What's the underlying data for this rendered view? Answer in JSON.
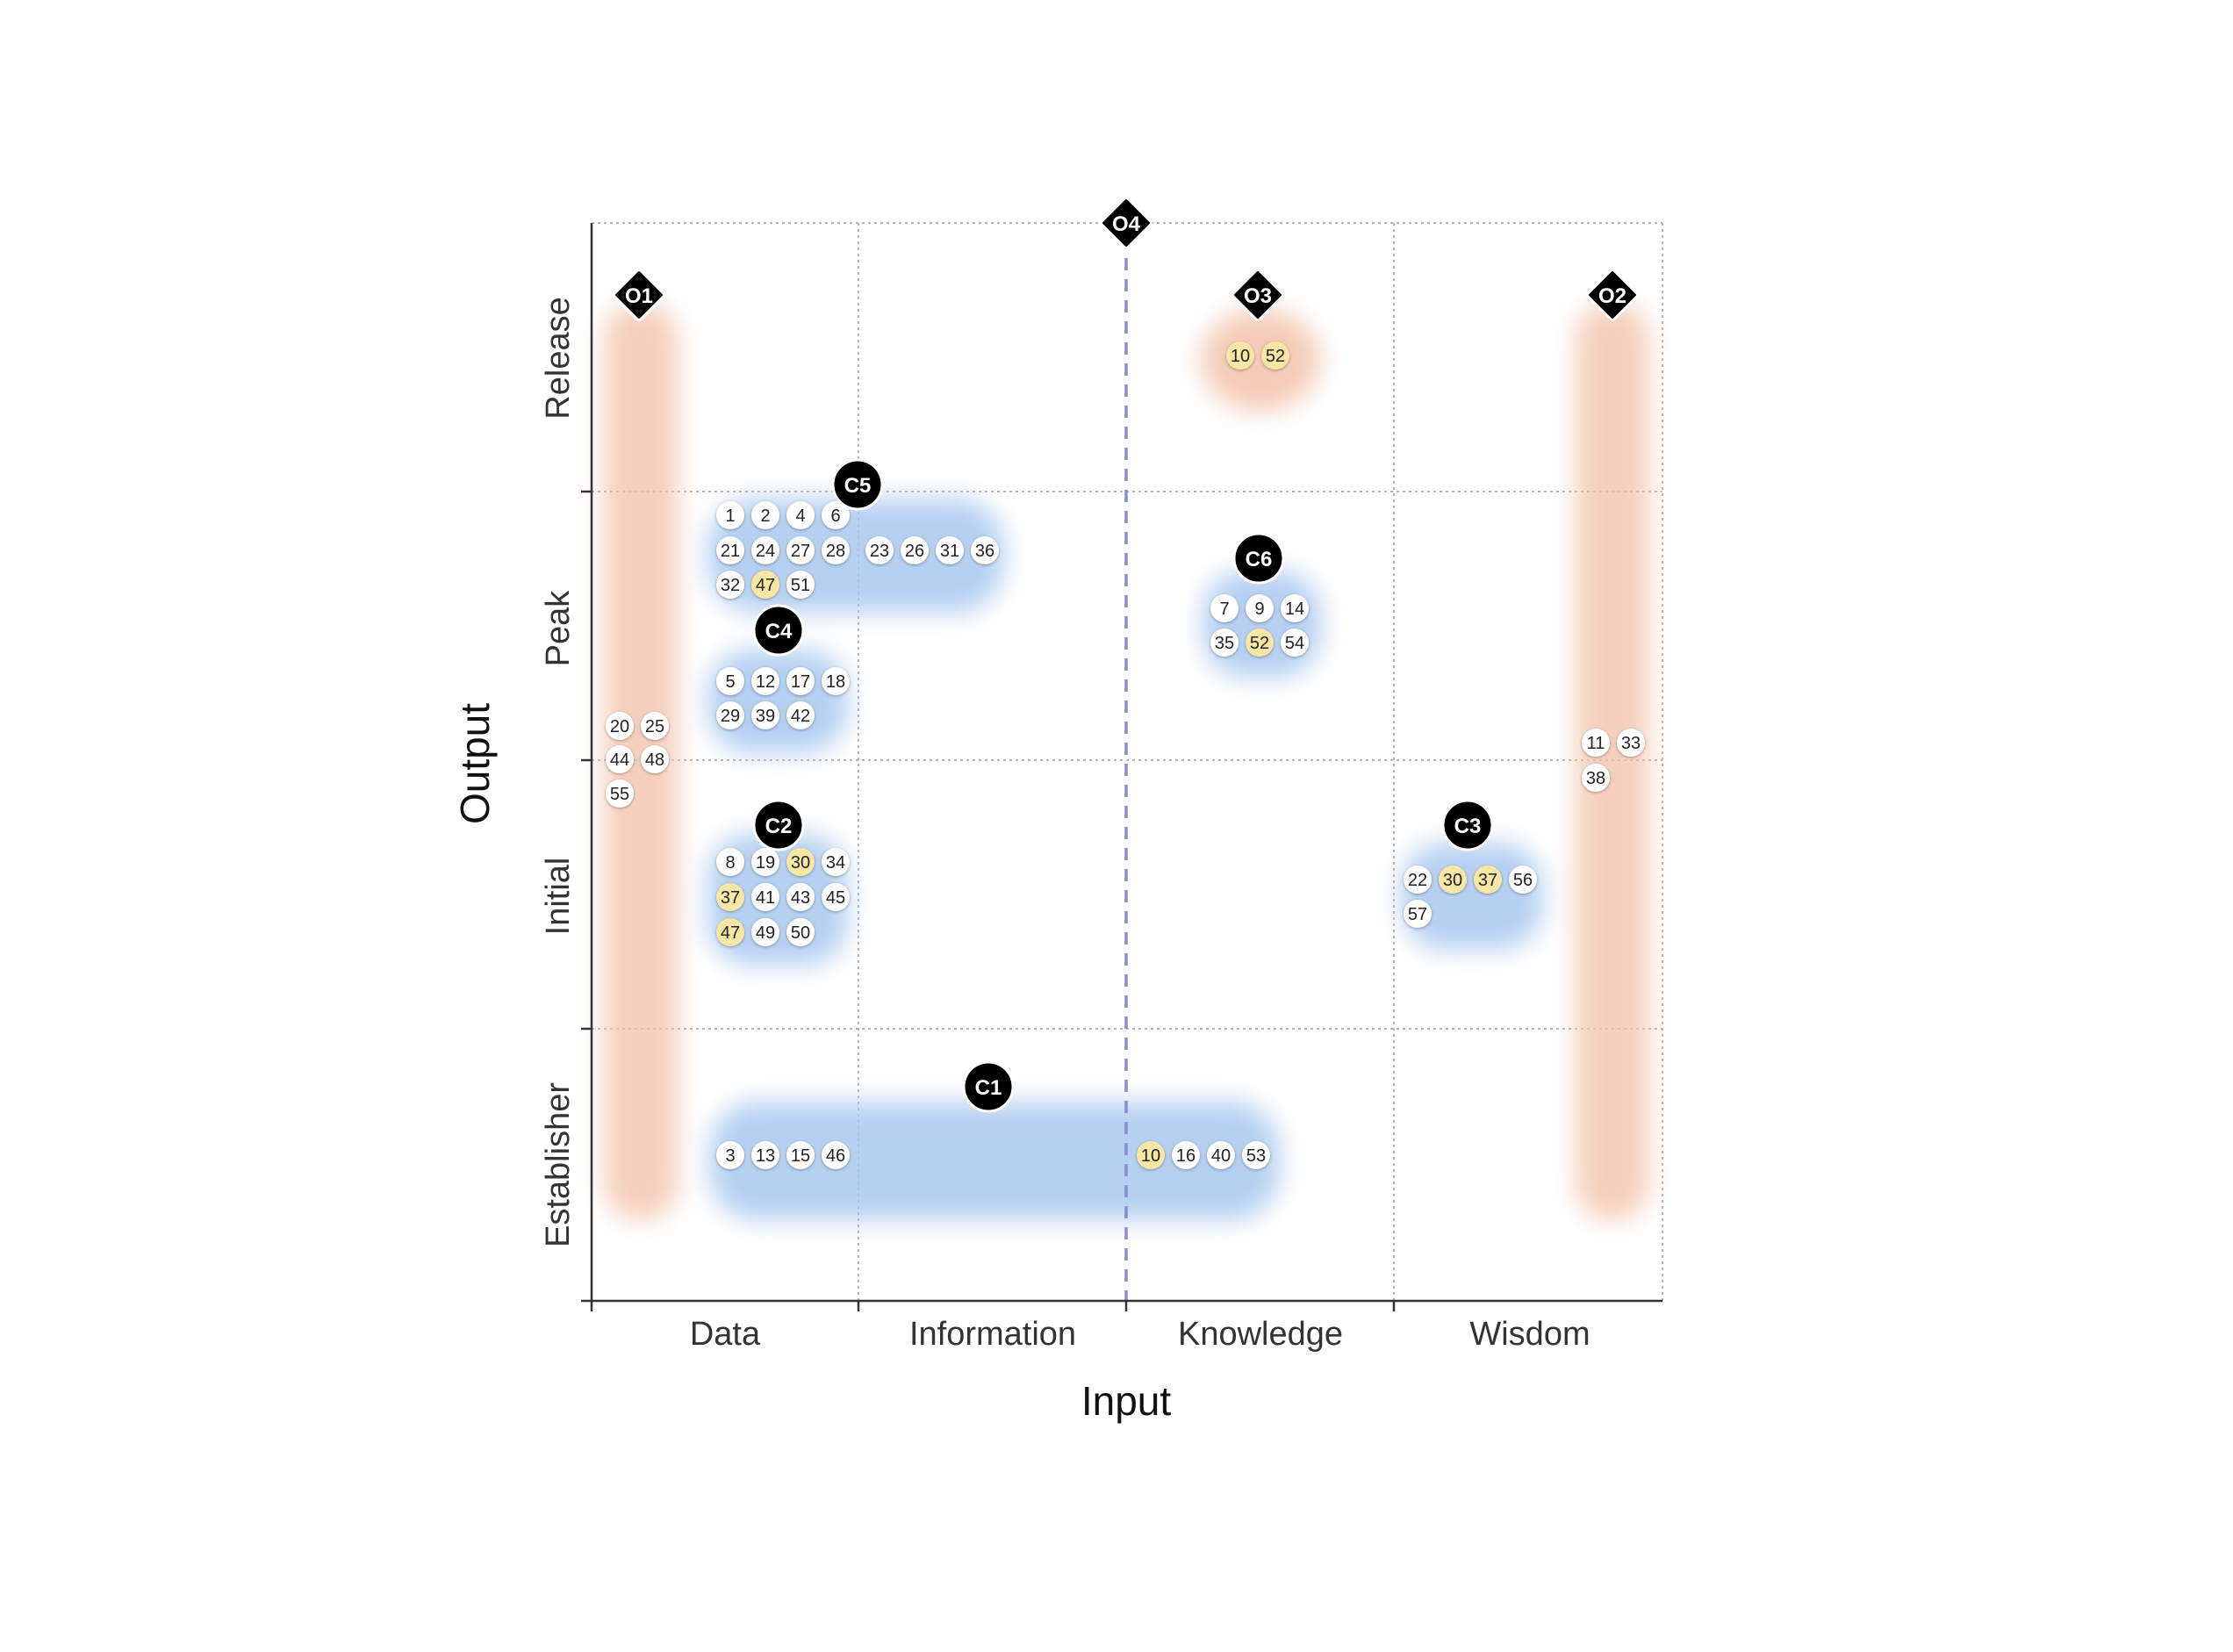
{
  "axes": {
    "x_title": "Input",
    "y_title": "Output",
    "x_labels": [
      "Data",
      "Information",
      "Knowledge",
      "Wisdom"
    ],
    "y_labels": [
      "Establisher",
      "Initial",
      "Peak",
      "Release"
    ]
  },
  "colors": {
    "cluster_fill": "#a9c8ef",
    "outlier_fill": "#f2c2aa",
    "highlight": "#f7e6a4",
    "marker": "#000000",
    "grid": "#b4b4b4",
    "divider": "#8a8ad6"
  },
  "markers": [
    {
      "id": "C1",
      "shape": "circle"
    },
    {
      "id": "C2",
      "shape": "circle"
    },
    {
      "id": "C3",
      "shape": "circle"
    },
    {
      "id": "C4",
      "shape": "circle"
    },
    {
      "id": "C5",
      "shape": "circle"
    },
    {
      "id": "C6",
      "shape": "circle"
    },
    {
      "id": "O1",
      "shape": "diamond"
    },
    {
      "id": "O2",
      "shape": "diamond"
    },
    {
      "id": "O3",
      "shape": "diamond"
    },
    {
      "id": "O4",
      "shape": "diamond"
    }
  ],
  "groups": [
    {
      "id": "C5",
      "input": "Data–Information",
      "output": "Peak",
      "numbers": [
        "1",
        "2",
        "4",
        "6",
        "21",
        "24",
        "27",
        "28",
        "23",
        "26",
        "31",
        "36",
        "32",
        "47",
        "51"
      ],
      "highlighted": [
        "47"
      ]
    },
    {
      "id": "C4",
      "input": "Data",
      "output": "Peak",
      "numbers": [
        "5",
        "12",
        "17",
        "18",
        "29",
        "39",
        "42"
      ],
      "highlighted": []
    },
    {
      "id": "C2",
      "input": "Data",
      "output": "Initial",
      "numbers": [
        "8",
        "19",
        "30",
        "34",
        "37",
        "41",
        "43",
        "45",
        "47",
        "49",
        "50"
      ],
      "highlighted": [
        "30",
        "37",
        "47"
      ]
    },
    {
      "id": "C1",
      "input": "Data–Knowledge",
      "output": "Establisher",
      "numbers": [
        "3",
        "13",
        "15",
        "46",
        "10",
        "16",
        "40",
        "53"
      ],
      "highlighted": [
        "10"
      ]
    },
    {
      "id": "C6",
      "input": "Knowledge",
      "output": "Peak",
      "numbers": [
        "7",
        "9",
        "14",
        "35",
        "52",
        "54"
      ],
      "highlighted": [
        "52"
      ]
    },
    {
      "id": "C3",
      "input": "Wisdom",
      "output": "Initial",
      "numbers": [
        "22",
        "30",
        "37",
        "56",
        "57"
      ],
      "highlighted": [
        "30",
        "37"
      ]
    },
    {
      "id": "O1",
      "input": "Data",
      "output": "Establisher–Release",
      "numbers": [
        "20",
        "25",
        "44",
        "48",
        "55"
      ],
      "highlighted": []
    },
    {
      "id": "O2",
      "input": "Wisdom",
      "output": "Establisher–Release",
      "numbers": [
        "11",
        "33",
        "38"
      ],
      "highlighted": []
    },
    {
      "id": "O3",
      "input": "Knowledge",
      "output": "Release",
      "numbers": [
        "10",
        "52"
      ],
      "highlighted": [
        "10",
        "52"
      ]
    }
  ]
}
